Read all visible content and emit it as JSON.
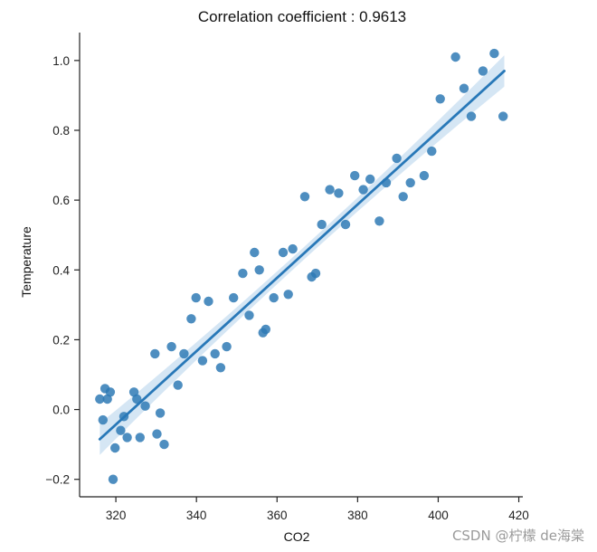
{
  "chart_data": {
    "type": "scatter",
    "title": "Correlation coefficient : 0.9613",
    "xlabel": "CO2",
    "ylabel": "Temperature",
    "xlim": [
      311,
      421
    ],
    "ylim": [
      -0.25,
      1.08
    ],
    "x_ticks": [
      320,
      340,
      360,
      380,
      400,
      420
    ],
    "y_ticks": [
      -0.2,
      0.0,
      0.2,
      0.4,
      0.6,
      0.8,
      1.0
    ],
    "y_tick_labels": [
      "−0.2",
      "0.0",
      "0.2",
      "0.4",
      "0.6",
      "0.8",
      "1.0"
    ],
    "grid": false,
    "point_color": "#2f7ab5",
    "line_color": "#2878b8",
    "band_color": "#c7ddf0",
    "regression": {
      "x_range": [
        316,
        416.4
      ],
      "y_range": [
        -0.085,
        0.97
      ],
      "ci_half_width_ends": 0.045,
      "ci_half_width_mid": 0.018
    },
    "points": [
      {
        "x": 316.0,
        "y": 0.03
      },
      {
        "x": 316.8,
        "y": -0.03
      },
      {
        "x": 317.3,
        "y": 0.06
      },
      {
        "x": 317.9,
        "y": 0.03
      },
      {
        "x": 318.6,
        "y": 0.05
      },
      {
        "x": 319.3,
        "y": -0.2
      },
      {
        "x": 319.8,
        "y": -0.11
      },
      {
        "x": 321.2,
        "y": -0.06
      },
      {
        "x": 322.0,
        "y": -0.02
      },
      {
        "x": 322.8,
        "y": -0.08
      },
      {
        "x": 324.5,
        "y": 0.05
      },
      {
        "x": 325.2,
        "y": 0.03
      },
      {
        "x": 326.0,
        "y": -0.08
      },
      {
        "x": 327.3,
        "y": 0.01
      },
      {
        "x": 329.7,
        "y": 0.16
      },
      {
        "x": 330.2,
        "y": -0.07
      },
      {
        "x": 331.0,
        "y": -0.01
      },
      {
        "x": 332.0,
        "y": -0.1
      },
      {
        "x": 333.8,
        "y": 0.18
      },
      {
        "x": 335.4,
        "y": 0.07
      },
      {
        "x": 336.9,
        "y": 0.16
      },
      {
        "x": 338.7,
        "y": 0.26
      },
      {
        "x": 339.9,
        "y": 0.32
      },
      {
        "x": 341.5,
        "y": 0.14
      },
      {
        "x": 343.0,
        "y": 0.31
      },
      {
        "x": 344.6,
        "y": 0.16
      },
      {
        "x": 346.0,
        "y": 0.12
      },
      {
        "x": 347.5,
        "y": 0.18
      },
      {
        "x": 349.2,
        "y": 0.32
      },
      {
        "x": 351.5,
        "y": 0.39
      },
      {
        "x": 353.1,
        "y": 0.27
      },
      {
        "x": 354.4,
        "y": 0.45
      },
      {
        "x": 355.6,
        "y": 0.4
      },
      {
        "x": 356.5,
        "y": 0.22
      },
      {
        "x": 357.2,
        "y": 0.23
      },
      {
        "x": 359.2,
        "y": 0.32
      },
      {
        "x": 361.5,
        "y": 0.45
      },
      {
        "x": 362.8,
        "y": 0.33
      },
      {
        "x": 363.9,
        "y": 0.46
      },
      {
        "x": 366.9,
        "y": 0.61
      },
      {
        "x": 368.6,
        "y": 0.38
      },
      {
        "x": 369.6,
        "y": 0.39
      },
      {
        "x": 371.1,
        "y": 0.53
      },
      {
        "x": 373.1,
        "y": 0.63
      },
      {
        "x": 375.3,
        "y": 0.62
      },
      {
        "x": 377.0,
        "y": 0.53
      },
      {
        "x": 379.3,
        "y": 0.67
      },
      {
        "x": 381.4,
        "y": 0.63
      },
      {
        "x": 383.1,
        "y": 0.66
      },
      {
        "x": 385.4,
        "y": 0.54
      },
      {
        "x": 387.1,
        "y": 0.65
      },
      {
        "x": 389.7,
        "y": 0.72
      },
      {
        "x": 391.3,
        "y": 0.61
      },
      {
        "x": 393.1,
        "y": 0.65
      },
      {
        "x": 396.5,
        "y": 0.67
      },
      {
        "x": 398.4,
        "y": 0.74
      },
      {
        "x": 400.5,
        "y": 0.89
      },
      {
        "x": 404.3,
        "y": 1.01
      },
      {
        "x": 406.4,
        "y": 0.92
      },
      {
        "x": 408.2,
        "y": 0.84
      },
      {
        "x": 411.1,
        "y": 0.97
      },
      {
        "x": 413.9,
        "y": 1.02
      },
      {
        "x": 416.1,
        "y": 0.84
      }
    ]
  },
  "watermark": {
    "text": "CSDN @柠檬 de海棠"
  }
}
